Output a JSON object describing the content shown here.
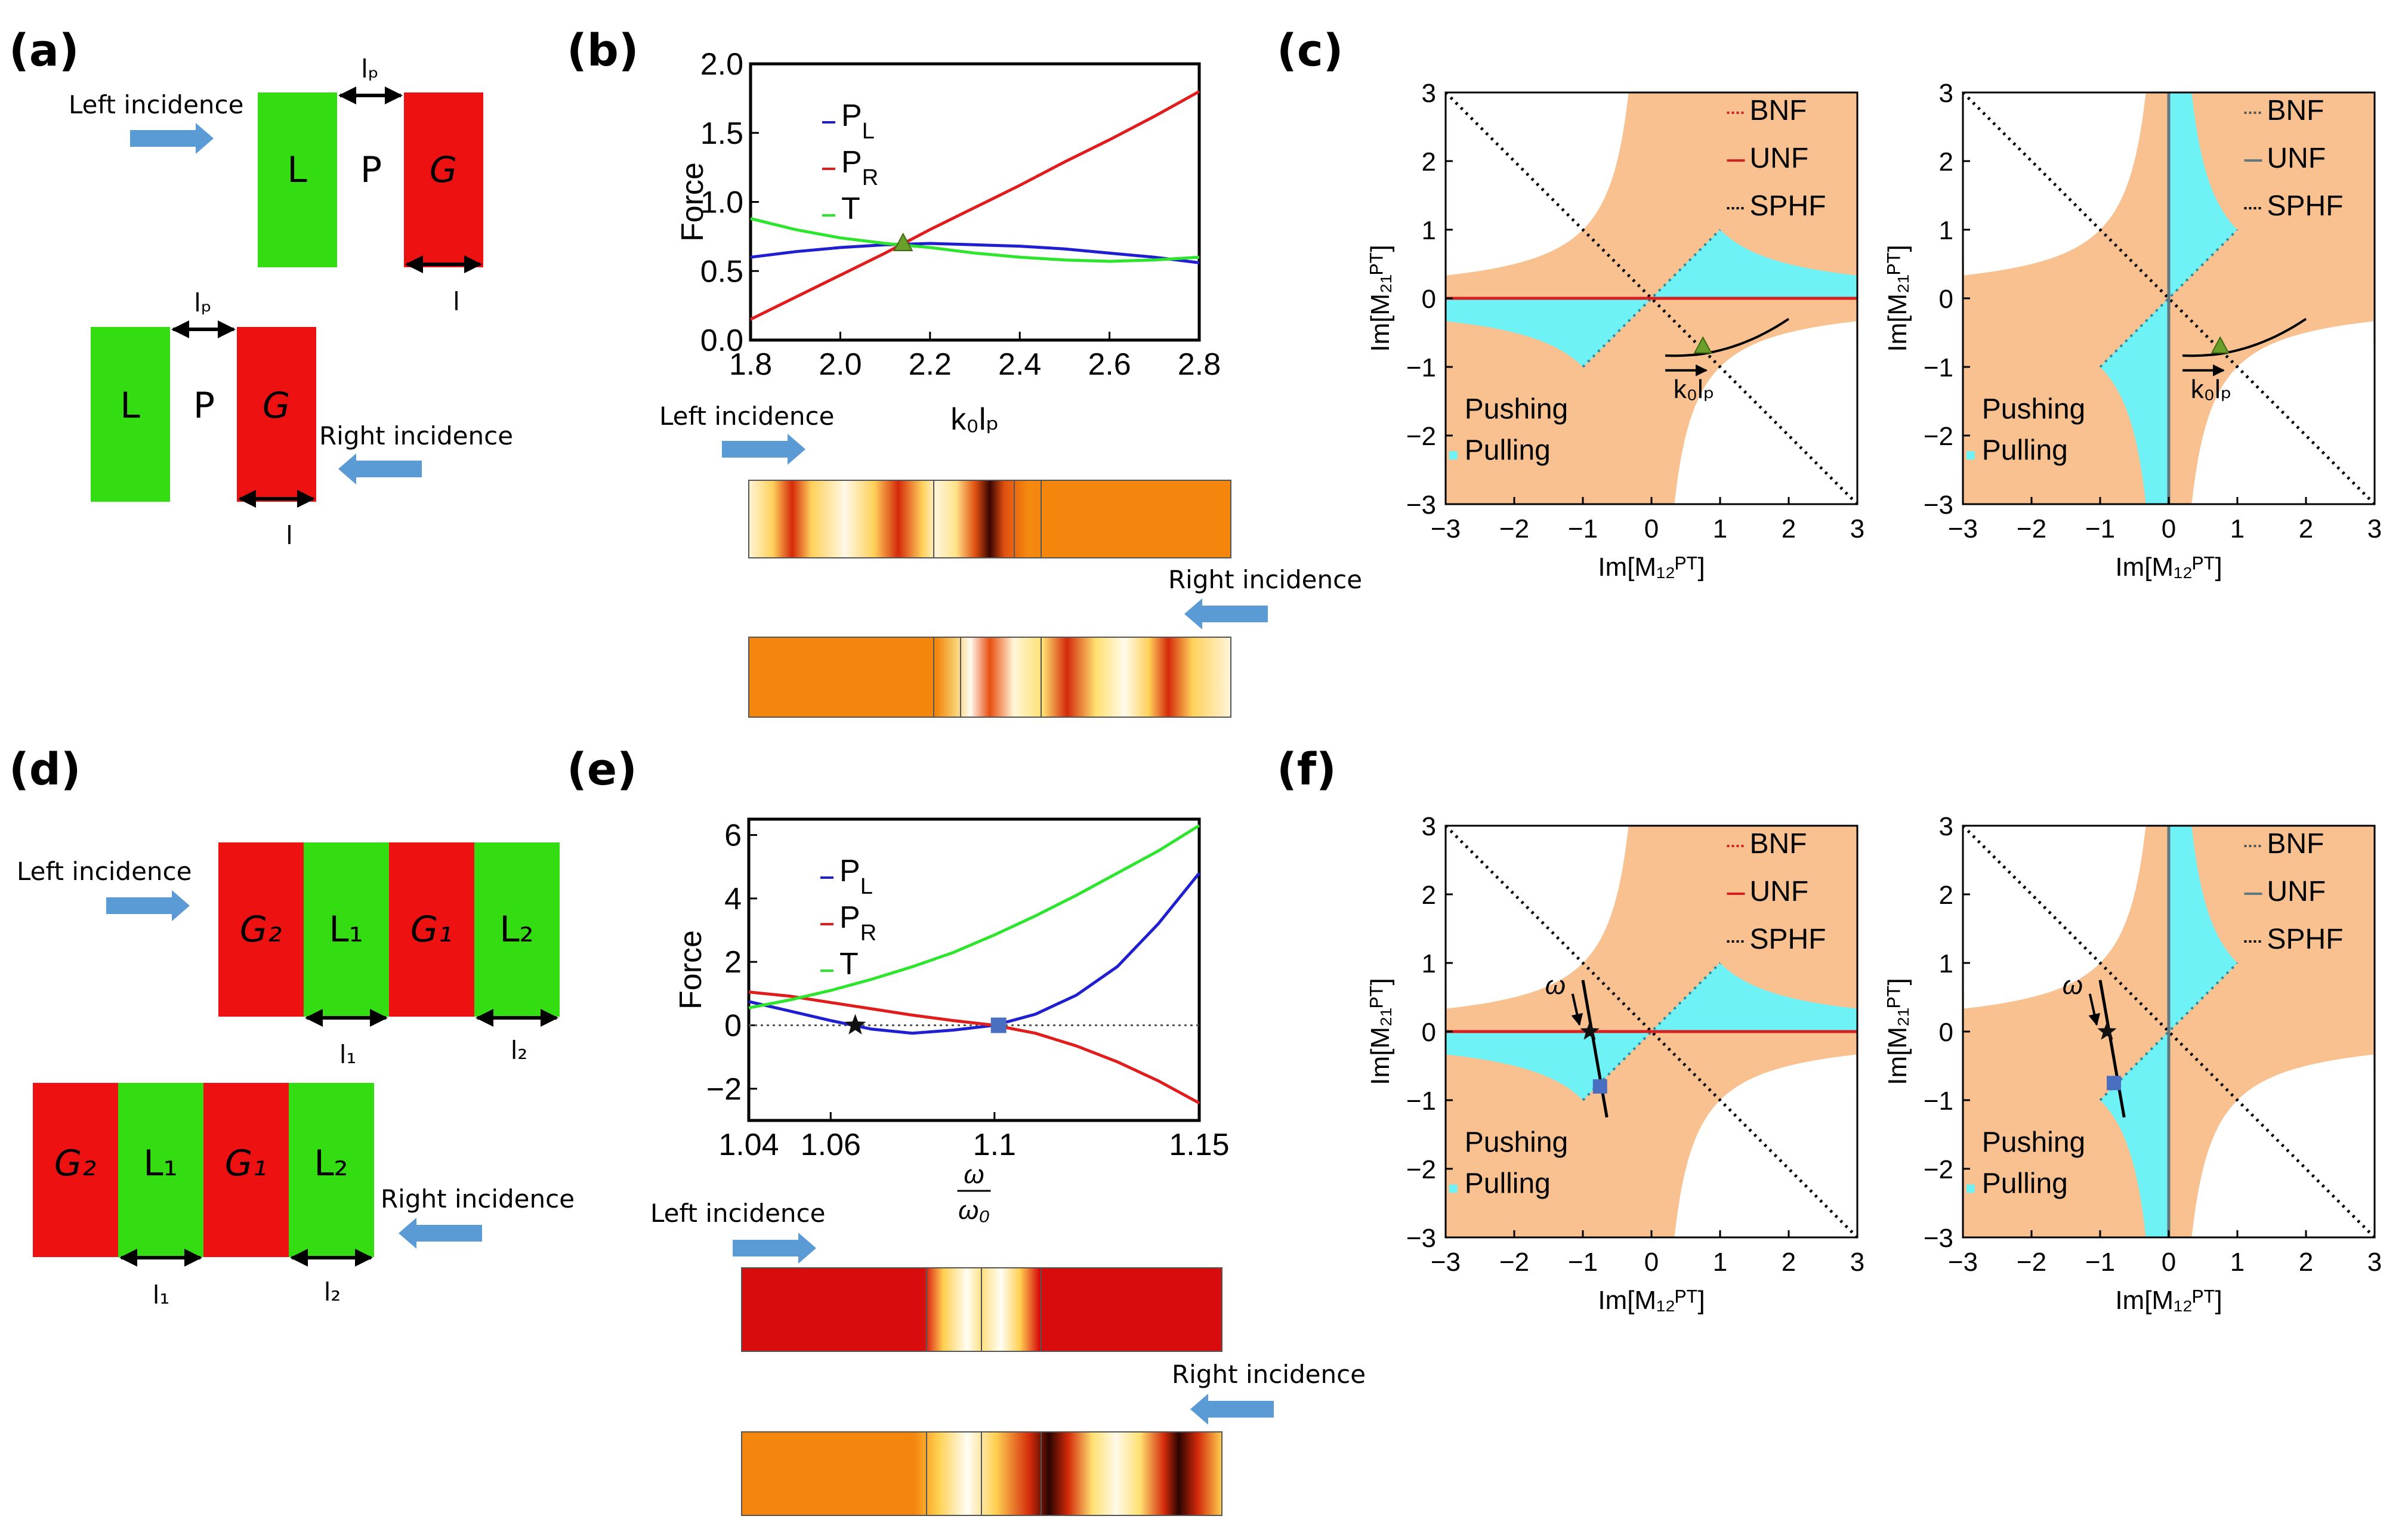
{
  "panels": {
    "a": "(a)",
    "b": "(b)",
    "c": "(c)",
    "d": "(d)",
    "e": "(e)",
    "f": "(f)"
  },
  "arrows": {
    "left": "Left incidence",
    "right": "Right incidence"
  },
  "blocks_a": {
    "L": "L",
    "P": "P",
    "G": "G",
    "lp": "lₚ",
    "l": "l"
  },
  "blocks_d": {
    "G2": "G₂",
    "L1": "L₁",
    "G1": "G₁",
    "L2": "L₂",
    "l1": "l₁",
    "l2": "l₂"
  },
  "colors": {
    "gain": "#ee1111",
    "loss": "#33dd11",
    "pushing": "#f9c190",
    "pulling": "#6ef2f5",
    "pl": "#1f1fd1",
    "pr": "#e11c1c",
    "t": "#2ee52e",
    "arrow": "#5b9bd5"
  },
  "field_b": {
    "left": "field-left-b",
    "right": "field-right-b"
  },
  "maps": {
    "xlabel": "Im[M₁₂ᴾᵀ]",
    "ylabel": "Im[M₂₁ᴾᵀ]",
    "legend": [
      "BNF",
      "UNF",
      "SPHF"
    ],
    "pushing": "Pushing",
    "pulling": "Pulling",
    "ticks": [
      "−3",
      "−2",
      "−1",
      "0",
      "1",
      "2",
      "3"
    ],
    "k0lp": "k₀lₚ",
    "omega": "ω"
  },
  "chart_data": [
    {
      "type": "line",
      "panel": "b",
      "xlabel": "k₀lₚ",
      "ylabel": "Force",
      "xlim": [
        1.8,
        2.8
      ],
      "ylim": [
        0,
        2.0
      ],
      "xticks": [
        "1.8",
        "2.0",
        "2.2",
        "2.4",
        "2.6",
        "2.8"
      ],
      "yticks": [
        "0.0",
        "0.5",
        "1.0",
        "1.5",
        "2.0"
      ],
      "x": [
        1.8,
        1.9,
        2.0,
        2.1,
        2.2,
        2.3,
        2.4,
        2.5,
        2.6,
        2.7,
        2.8
      ],
      "series": [
        {
          "name": "P",
          "sub": "L",
          "color": "#1f1fd1",
          "values": [
            0.6,
            0.64,
            0.67,
            0.69,
            0.7,
            0.69,
            0.68,
            0.66,
            0.63,
            0.6,
            0.56
          ]
        },
        {
          "name": "P",
          "sub": "R",
          "color": "#e11c1c",
          "values": [
            0.15,
            0.31,
            0.47,
            0.63,
            0.8,
            0.96,
            1.12,
            1.29,
            1.45,
            1.62,
            1.8
          ]
        },
        {
          "name": "T",
          "sub": "",
          "color": "#2ee52e",
          "values": [
            0.88,
            0.8,
            0.74,
            0.7,
            0.67,
            0.63,
            0.6,
            0.58,
            0.57,
            0.58,
            0.6
          ]
        }
      ],
      "marker": {
        "x": 2.14,
        "y": 0.7,
        "shape": "triangle"
      }
    },
    {
      "type": "line",
      "panel": "e",
      "xlabel": "ω/ω₀",
      "ylabel": "Force",
      "xlim": [
        1.04,
        1.15
      ],
      "ylim": [
        -3,
        6.5
      ],
      "xticks": [
        "1.04",
        "1.06",
        "1.1",
        "1.15"
      ],
      "xtickvals": [
        1.04,
        1.06,
        1.1,
        1.15
      ],
      "yticks": [
        "−2",
        "0",
        "2",
        "4",
        "6"
      ],
      "ytickvals": [
        -2,
        0,
        2,
        4,
        6
      ],
      "x": [
        1.04,
        1.05,
        1.06,
        1.07,
        1.08,
        1.09,
        1.1,
        1.11,
        1.12,
        1.13,
        1.14,
        1.15
      ],
      "series": [
        {
          "name": "P",
          "sub": "L",
          "color": "#1f1fd1",
          "values": [
            0.75,
            0.45,
            0.15,
            -0.12,
            -0.25,
            -0.15,
            0.0,
            0.35,
            0.95,
            1.85,
            3.2,
            4.8
          ]
        },
        {
          "name": "P",
          "sub": "R",
          "color": "#e11c1c",
          "values": [
            1.05,
            0.92,
            0.72,
            0.52,
            0.32,
            0.15,
            0.0,
            -0.25,
            -0.65,
            -1.15,
            -1.75,
            -2.45
          ]
        },
        {
          "name": "T",
          "sub": "",
          "color": "#2ee52e",
          "values": [
            0.55,
            0.8,
            1.1,
            1.45,
            1.85,
            2.3,
            2.85,
            3.45,
            4.1,
            4.8,
            5.5,
            6.3
          ]
        }
      ],
      "markers": [
        {
          "x": 1.066,
          "y": 0.0,
          "shape": "star"
        },
        {
          "x": 1.101,
          "y": 0.0,
          "shape": "square"
        }
      ]
    }
  ]
}
